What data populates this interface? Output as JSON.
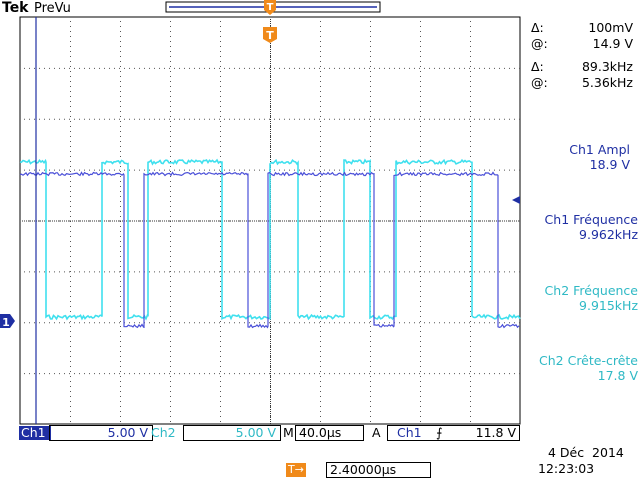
{
  "header": {
    "brand": "Tek",
    "mode": "PreVu"
  },
  "trigger_marker": "T",
  "cursors": [
    {
      "label": "Δ:",
      "value": "100mV"
    },
    {
      "label": "@:",
      "value": "14.9 V"
    },
    {
      "label": "Δ:",
      "value": "89.3kHz"
    },
    {
      "label": "@:",
      "value": "5.36kHz"
    }
  ],
  "measurements": [
    {
      "name": "Ch1 Ampl",
      "value": "18.9 V",
      "channel": "ch1"
    },
    {
      "name": "Ch1 Fréquence",
      "value": "9.962kHz",
      "channel": "ch1"
    },
    {
      "name": "Ch2 Fréquence",
      "value": "9.915kHz",
      "channel": "ch2"
    },
    {
      "name": "Ch2 Crête-crête",
      "value": "17.8 V",
      "channel": "ch2"
    }
  ],
  "channel_marker": "1",
  "status_bar": {
    "ch1_label": "Ch1",
    "ch1_scale": "5.00 V",
    "ch2_label": "Ch2",
    "ch2_scale": "5.00 V",
    "timebase_label": "M",
    "timebase": "40.0µs",
    "trigger_mode": "A",
    "trigger_source": "Ch1",
    "trigger_slope": "⨍",
    "trigger_level": "11.8 V"
  },
  "delay": {
    "icon": "T→",
    "value": "2.40000µs"
  },
  "date": "4 Déc  2014",
  "time": "12:23:03",
  "colors": {
    "ch1": "#4a4fd8",
    "ch2": "#3fe0ee",
    "ch1_text": "#1f2fa3",
    "ch2_text": "#2fb9c5",
    "trigger": "#f08a1a",
    "grid": "#000000"
  }
}
